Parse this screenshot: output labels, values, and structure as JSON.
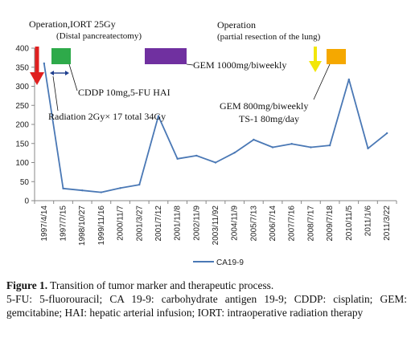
{
  "chart_data": {
    "type": "line",
    "categories": [
      "1997/4/14",
      "1997/7/15",
      "1998/10/27",
      "1999/11/16",
      "2000/11/7",
      "2001/3/27",
      "2001/7/12",
      "2001/11/8",
      "2002/11/9",
      "2003/11/92",
      "2004/11/9",
      "2005/7/13",
      "2006/7/14",
      "2007/7/16",
      "2008/7/17",
      "2009/7/18",
      "2010/11/5",
      "2011/1/6",
      "2011/3/22"
    ],
    "series": [
      {
        "name": "CA19-9",
        "values": [
          360,
          32,
          27,
          22,
          33,
          42,
          222,
          110,
          118,
          100,
          126,
          160,
          140,
          149,
          140,
          145,
          318,
          137,
          177
        ],
        "color": "#4a78b5"
      }
    ],
    "ylim": [
      0,
      400
    ],
    "yticks": [
      "0",
      "50",
      "100",
      "150",
      "200",
      "250",
      "300",
      "350",
      "400"
    ],
    "grid": false,
    "legend_position": "bottom",
    "annotations": {
      "op1_title": "Operation,IORT 25Gy",
      "op1_sub": "(Distal pancreatectomy)",
      "cddp": "CDDP 10mg,5-FU  HAI",
      "radiation": "Radiation 2Gy× 17  total 34Gy",
      "gem1000": "GEM 1000mg/biweekly",
      "op2_title": "Operation",
      "op2_sub": "(partial resection of the lung)",
      "gem800": "GEM 800mg/biweekly",
      "ts1": "TS-1 80mg/day"
    },
    "marker_colors": {
      "red_arrow": "#e02020",
      "green_box": "#2eaa4a",
      "purple_box": "#7030a0",
      "yellow_arrow": "#f2e60a",
      "orange_box": "#f5a800",
      "double_arrow": "#1f3f8f"
    }
  },
  "caption": {
    "label": "Figure 1.",
    "title": " Transition of tumor marker and therapeutic process.",
    "description": "5-FU: 5-fluorouracil; CA 19-9: carbohydrate antigen 19-9; CDDP: cisplatin; GEM: gemcitabine; HAI: hepatic arterial infusion; IORT: intraoperative radiation therapy"
  }
}
